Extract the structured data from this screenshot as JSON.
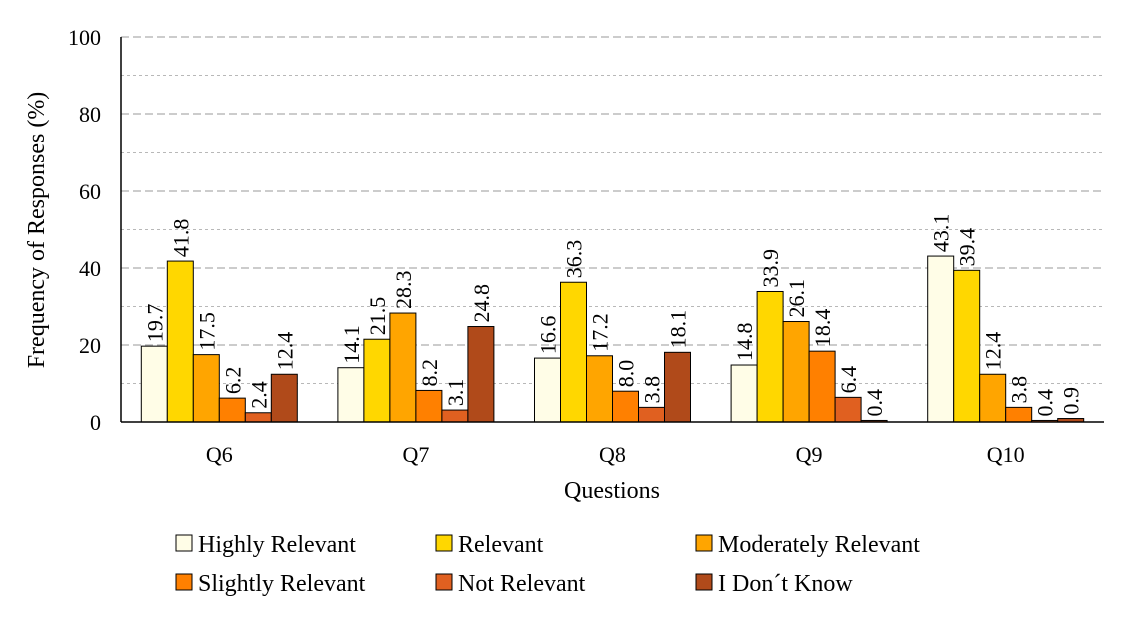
{
  "chart_data": {
    "type": "bar",
    "categories": [
      "Q6",
      "Q7",
      "Q8",
      "Q9",
      "Q10"
    ],
    "series": [
      {
        "name": "Highly Relevant",
        "color": "#FFFDE7",
        "values": [
          19.7,
          14.1,
          16.6,
          14.8,
          43.1
        ]
      },
      {
        "name": "Relevant",
        "color": "#FFD700",
        "values": [
          41.8,
          21.5,
          36.3,
          33.9,
          39.4
        ]
      },
      {
        "name": "Moderately Relevant",
        "color": "#FFA500",
        "values": [
          17.5,
          28.3,
          17.2,
          26.1,
          12.4
        ]
      },
      {
        "name": "Slightly Relevant",
        "color": "#FF8000",
        "values": [
          6.2,
          8.2,
          8.0,
          18.4,
          3.8
        ]
      },
      {
        "name": "Not Relevant",
        "color": "#E06020",
        "values": [
          2.4,
          3.1,
          3.8,
          6.4,
          0.4
        ]
      },
      {
        "name": "I Don´t Know",
        "color": "#B04A1A",
        "values": [
          12.4,
          24.8,
          18.1,
          0.4,
          0.9
        ]
      }
    ],
    "data_labels": [
      [
        "19.7",
        "14.1",
        "16.6",
        "14.8",
        "43.1"
      ],
      [
        "41.8",
        "21.5",
        "36.3",
        "33.9",
        "39.4"
      ],
      [
        "17.5",
        "28.3",
        "17.2",
        "26.1",
        "12.4"
      ],
      [
        "6.2",
        "8.2",
        "8.0",
        "18.4",
        "3.8"
      ],
      [
        "2.4",
        "3.1",
        "3.8",
        "6.4",
        "0.4"
      ],
      [
        "12.4",
        "24.8",
        "18.1",
        "0.4",
        "0.9"
      ]
    ],
    "xlabel": "Questions",
    "ylabel": "Frequency of Responses (%)",
    "ylim": [
      0,
      100
    ],
    "yticks": [
      "0",
      "20",
      "40",
      "60",
      "80",
      "100"
    ],
    "grid": "dashed horizontal",
    "legend_position": "bottom"
  }
}
